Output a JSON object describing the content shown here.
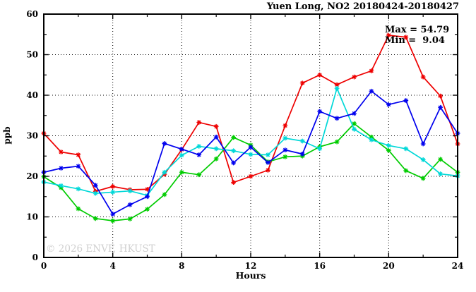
{
  "header": {
    "title": "Yuen Long, NO2 20180424-20180427"
  },
  "stats": {
    "max_label": "Max = 54.79",
    "min_label": "Min =  9.04"
  },
  "watermark": {
    "text": "© 2026 ENVF, HKUST",
    "color": "#d0d0d0"
  },
  "axes": {
    "x_label": "Hours",
    "y_label": "ppb"
  },
  "chart_data": {
    "type": "line",
    "title": "Yuen Long, NO2 20180424-20180427",
    "xlabel": "Hours",
    "ylabel": "ppb",
    "xlim": [
      0,
      24
    ],
    "ylim": [
      0,
      60
    ],
    "xticks": [
      0,
      4,
      8,
      12,
      16,
      20,
      24
    ],
    "xticks_minor": [
      2,
      6,
      10,
      14,
      18,
      22
    ],
    "yticks": [
      0,
      10,
      20,
      30,
      40,
      50,
      60
    ],
    "yticks_minor": [
      5,
      15,
      25,
      35,
      45,
      55
    ],
    "grid": {
      "x_at": [
        4,
        8,
        12,
        16,
        20
      ],
      "y_at": [
        10,
        20,
        30,
        40,
        50
      ],
      "style": "dotted"
    },
    "marker": "asterisk",
    "legend_position": "none",
    "annotations": [
      "Max = 54.79",
      "Min =  9.04"
    ],
    "x": [
      0,
      1,
      2,
      3,
      4,
      5,
      6,
      7,
      8,
      9,
      10,
      11,
      12,
      13,
      14,
      15,
      16,
      17,
      18,
      19,
      20,
      21,
      22,
      23,
      24
    ],
    "series": [
      {
        "name": "red",
        "color": "#ee0000",
        "values": [
          30.6,
          26.0,
          25.3,
          16.3,
          17.5,
          16.7,
          16.8,
          20.5,
          26.6,
          33.3,
          32.3,
          18.5,
          20.0,
          21.5,
          32.5,
          43.0,
          45.0,
          42.6,
          44.5,
          46.0,
          54.79,
          54.3,
          44.5,
          39.8,
          28.0
        ]
      },
      {
        "name": "green",
        "color": "#00cc00",
        "values": [
          19.9,
          17.2,
          12.0,
          9.6,
          9.04,
          9.5,
          11.9,
          15.5,
          21.0,
          20.4,
          24.3,
          29.6,
          27.7,
          23.6,
          24.8,
          25.0,
          27.3,
          28.5,
          33.0,
          29.7,
          26.4,
          21.4,
          19.5,
          24.2,
          21.0
        ]
      },
      {
        "name": "cyan",
        "color": "#00d8d8",
        "values": [
          18.6,
          17.7,
          16.9,
          15.8,
          16.1,
          16.4,
          15.3,
          21.0,
          25.2,
          27.4,
          26.8,
          26.3,
          25.4,
          25.3,
          29.4,
          28.7,
          26.8,
          41.7,
          31.6,
          29.0,
          27.6,
          26.8,
          24.1,
          20.6,
          20.1
        ]
      },
      {
        "name": "blue",
        "color": "#0000ee",
        "values": [
          21.0,
          22.0,
          22.5,
          17.8,
          10.7,
          13.0,
          15.0,
          28.1,
          26.7,
          25.3,
          29.7,
          23.3,
          27.2,
          23.4,
          26.5,
          25.5,
          36.0,
          34.3,
          35.5,
          41.0,
          37.7,
          38.7,
          28.0,
          37.0,
          30.6
        ]
      }
    ],
    "max_value": 54.79,
    "min_value": 9.04
  }
}
